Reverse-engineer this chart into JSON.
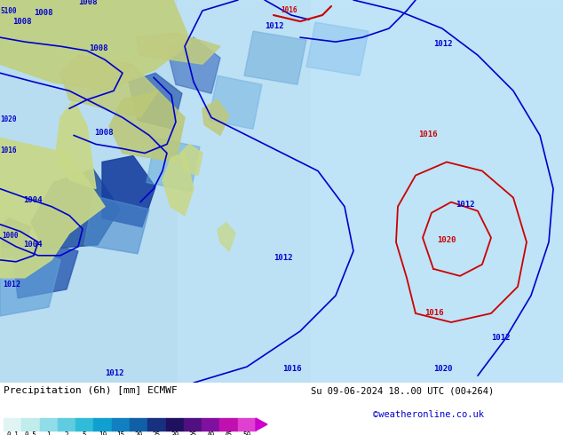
{
  "title_left": "Precipitation (6h) [mm] ECMWF",
  "title_right": "Su 09-06-2024 18..00 UTC (00+264)",
  "credit": "©weatheronline.co.uk",
  "colorbar_values": [
    "0.1",
    "0.5",
    "1",
    "2",
    "5",
    "10",
    "15",
    "20",
    "25",
    "30",
    "35",
    "40",
    "45",
    "50"
  ],
  "colorbar_colors": [
    "#e0f4f4",
    "#c0ecec",
    "#90dce8",
    "#60cce0",
    "#30bcd8",
    "#10a0d0",
    "#1080c0",
    "#1060a8",
    "#183080",
    "#201060",
    "#501080",
    "#8010a0",
    "#c010b0",
    "#e040d0"
  ],
  "contour_color": "#0000cc",
  "contour_red_color": "#cc0000",
  "figsize": [
    6.34,
    4.9
  ],
  "dpi": 100
}
